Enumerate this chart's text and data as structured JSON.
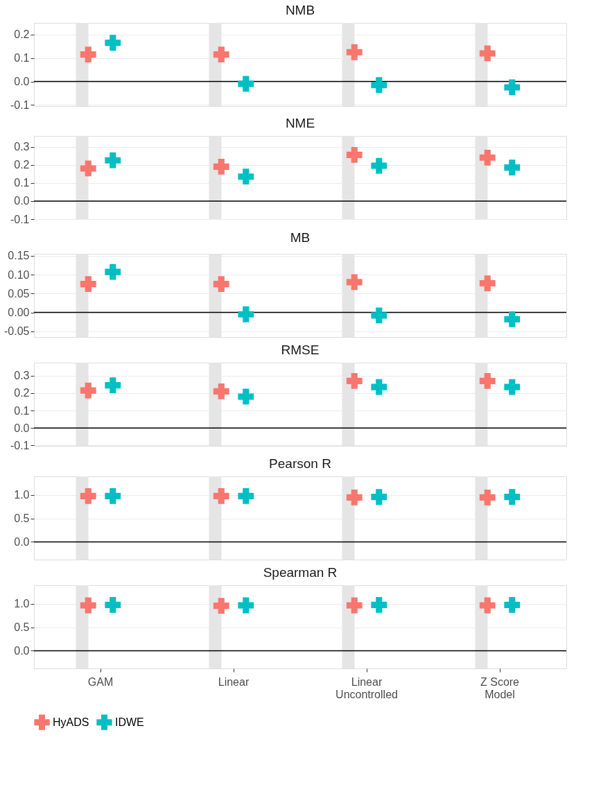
{
  "chart_data": [
    {
      "type": "scatter",
      "title": "NMB",
      "categories": [
        "GAM",
        "Linear",
        "Linear\nUncontrolled",
        "Z Score\nModel"
      ],
      "marker": "cross",
      "grid": "y",
      "legend": "bottom",
      "tick_labels": "y",
      "ylim": [
        -0.105,
        0.25
      ],
      "yticks": [
        {
          "value": -0.1,
          "label": "-0.1"
        },
        {
          "value": 0,
          "label": "0.0"
        },
        0.1,
        0.2
      ],
      "ref_lines": [
        {
          "axis": "y",
          "value": 0,
          "color": "#000000"
        }
      ],
      "bands": [
        {
          "axis": "x",
          "from": "GAM",
          "to": "GAM",
          "color": "#e5e5e5"
        },
        {
          "axis": "x",
          "from": "Linear",
          "to": "Linear",
          "color": "#e5e5e5"
        },
        {
          "axis": "x",
          "from": "Linear\nUncontrolled",
          "to": "Linear\nUncontrolled",
          "color": "#e5e5e5"
        },
        {
          "axis": "x",
          "from": "Z Score\nModel",
          "to": "Z Score\nModel",
          "color": "#e5e5e5"
        }
      ],
      "series": [
        {
          "name": "HyADS",
          "color": "#f8766d",
          "values": [
            0.115,
            0.115,
            0.125,
            0.12
          ]
        },
        {
          "name": "IDWE",
          "color": "#00bfc4",
          "values": [
            0.165,
            -0.01,
            -0.015,
            -0.025
          ]
        }
      ]
    },
    {
      "type": "scatter",
      "title": "NME",
      "categories": [
        "GAM",
        "Linear",
        "Linear\nUncontrolled",
        "Z Score\nModel"
      ],
      "marker": "cross",
      "grid": "y",
      "legend": "bottom",
      "tick_labels": "y",
      "ylim": [
        -0.1,
        0.36
      ],
      "yticks": [
        {
          "value": -0.1,
          "label": "-0.1"
        },
        {
          "value": 0,
          "label": "0.0"
        },
        0.1,
        0.2,
        0.3
      ],
      "ref_lines": [
        {
          "axis": "y",
          "value": 0,
          "color": "#000000"
        }
      ],
      "bands": [
        {
          "axis": "x",
          "from": "GAM",
          "to": "GAM",
          "color": "#e5e5e5"
        },
        {
          "axis": "x",
          "from": "Linear",
          "to": "Linear",
          "color": "#e5e5e5"
        },
        {
          "axis": "x",
          "from": "Linear\nUncontrolled",
          "to": "Linear\nUncontrolled",
          "color": "#e5e5e5"
        },
        {
          "axis": "x",
          "from": "Z Score\nModel",
          "to": "Z Score\nModel",
          "color": "#e5e5e5"
        }
      ],
      "series": [
        {
          "name": "HyADS",
          "color": "#f8766d",
          "values": [
            0.18,
            0.19,
            0.255,
            0.24
          ]
        },
        {
          "name": "IDWE",
          "color": "#00bfc4",
          "values": [
            0.225,
            0.135,
            0.195,
            0.185
          ]
        }
      ]
    },
    {
      "type": "scatter",
      "title": "MB",
      "categories": [
        "GAM",
        "Linear",
        "Linear\nUncontrolled",
        "Z Score\nModel"
      ],
      "marker": "cross",
      "grid": "y",
      "legend": "bottom",
      "tick_labels": "y",
      "ylim": [
        -0.065,
        0.155
      ],
      "yticks": [
        {
          "value": -0.05,
          "label": "-0.05"
        },
        {
          "value": 0,
          "label": "0.00"
        },
        {
          "value": 0.05,
          "label": "0.05"
        },
        {
          "value": 0.1,
          "label": "0.10"
        },
        {
          "value": 0.15,
          "label": "0.15"
        }
      ],
      "ref_lines": [
        {
          "axis": "y",
          "value": 0,
          "color": "#000000"
        }
      ],
      "bands": [
        {
          "axis": "x",
          "from": "GAM",
          "to": "GAM",
          "color": "#e5e5e5"
        },
        {
          "axis": "x",
          "from": "Linear",
          "to": "Linear",
          "color": "#e5e5e5"
        },
        {
          "axis": "x",
          "from": "Linear\nUncontrolled",
          "to": "Linear\nUncontrolled",
          "color": "#e5e5e5"
        },
        {
          "axis": "x",
          "from": "Z Score\nModel",
          "to": "Z Score\nModel",
          "color": "#e5e5e5"
        }
      ],
      "series": [
        {
          "name": "HyADS",
          "color": "#f8766d",
          "values": [
            0.075,
            0.075,
            0.08,
            0.077
          ]
        },
        {
          "name": "IDWE",
          "color": "#00bfc4",
          "values": [
            0.107,
            -0.005,
            -0.008,
            -0.018
          ]
        }
      ]
    },
    {
      "type": "scatter",
      "title": "RMSE",
      "categories": [
        "GAM",
        "Linear",
        "Linear\nUncontrolled",
        "Z Score\nModel"
      ],
      "marker": "cross",
      "grid": "y",
      "legend": "bottom",
      "tick_labels": "y",
      "ylim": [
        -0.103,
        0.375
      ],
      "yticks": [
        {
          "value": -0.1,
          "label": "-0.1"
        },
        {
          "value": 0,
          "label": "0.0"
        },
        0.1,
        0.2,
        0.3
      ],
      "ref_lines": [
        {
          "axis": "y",
          "value": 0,
          "color": "#000000"
        }
      ],
      "bands": [
        {
          "axis": "x",
          "from": "GAM",
          "to": "GAM",
          "color": "#e5e5e5"
        },
        {
          "axis": "x",
          "from": "Linear",
          "to": "Linear",
          "color": "#e5e5e5"
        },
        {
          "axis": "x",
          "from": "Linear\nUncontrolled",
          "to": "Linear\nUncontrolled",
          "color": "#e5e5e5"
        },
        {
          "axis": "x",
          "from": "Z Score\nModel",
          "to": "Z Score\nModel",
          "color": "#e5e5e5"
        }
      ],
      "series": [
        {
          "name": "HyADS",
          "color": "#f8766d",
          "values": [
            0.215,
            0.21,
            0.27,
            0.27
          ]
        },
        {
          "name": "IDWE",
          "color": "#00bfc4",
          "values": [
            0.245,
            0.18,
            0.235,
            0.235
          ]
        }
      ]
    },
    {
      "type": "scatter",
      "title": "Pearson R",
      "categories": [
        "GAM",
        "Linear",
        "Linear\nUncontrolled",
        "Z Score\nModel"
      ],
      "marker": "cross",
      "grid": "y",
      "legend": "bottom",
      "tick_labels": "y",
      "ylim": [
        -0.38,
        1.4
      ],
      "yticks": [
        {
          "value": 0,
          "label": "0.0"
        },
        0.5,
        {
          "value": 1,
          "label": "1.0"
        }
      ],
      "ref_lines": [
        {
          "axis": "y",
          "value": 0,
          "color": "#000000"
        }
      ],
      "bands": [
        {
          "axis": "x",
          "from": "GAM",
          "to": "GAM",
          "color": "#e5e5e5"
        },
        {
          "axis": "x",
          "from": "Linear",
          "to": "Linear",
          "color": "#e5e5e5"
        },
        {
          "axis": "x",
          "from": "Linear\nUncontrolled",
          "to": "Linear\nUncontrolled",
          "color": "#e5e5e5"
        },
        {
          "axis": "x",
          "from": "Z Score\nModel",
          "to": "Z Score\nModel",
          "color": "#e5e5e5"
        }
      ],
      "series": [
        {
          "name": "HyADS",
          "color": "#f8766d",
          "values": [
            0.98,
            0.98,
            0.95,
            0.95
          ]
        },
        {
          "name": "IDWE",
          "color": "#00bfc4",
          "values": [
            0.98,
            0.98,
            0.96,
            0.96
          ]
        }
      ]
    },
    {
      "type": "scatter",
      "title": "Spearman R",
      "categories": [
        "GAM",
        "Linear",
        "Linear\nUncontrolled",
        "Z Score\nModel"
      ],
      "marker": "cross",
      "grid": "y",
      "legend": "bottom",
      "ylim": [
        -0.38,
        1.4
      ],
      "yticks": [
        {
          "value": 0,
          "label": "0.0"
        },
        0.5,
        {
          "value": 1,
          "label": "1.0"
        }
      ],
      "ref_lines": [
        {
          "axis": "y",
          "value": 0,
          "color": "#000000"
        }
      ],
      "bands": [
        {
          "axis": "x",
          "from": "GAM",
          "to": "GAM",
          "color": "#e5e5e5"
        },
        {
          "axis": "x",
          "from": "Linear",
          "to": "Linear",
          "color": "#e5e5e5"
        },
        {
          "axis": "x",
          "from": "Linear\nUncontrolled",
          "to": "Linear\nUncontrolled",
          "color": "#e5e5e5"
        },
        {
          "axis": "x",
          "from": "Z Score\nModel",
          "to": "Z Score\nModel",
          "color": "#e5e5e5"
        }
      ],
      "series": [
        {
          "name": "HyADS",
          "color": "#f8766d",
          "values": [
            0.97,
            0.96,
            0.97,
            0.97
          ]
        },
        {
          "name": "IDWE",
          "color": "#00bfc4",
          "values": [
            0.98,
            0.97,
            0.98,
            0.98
          ]
        }
      ]
    }
  ]
}
